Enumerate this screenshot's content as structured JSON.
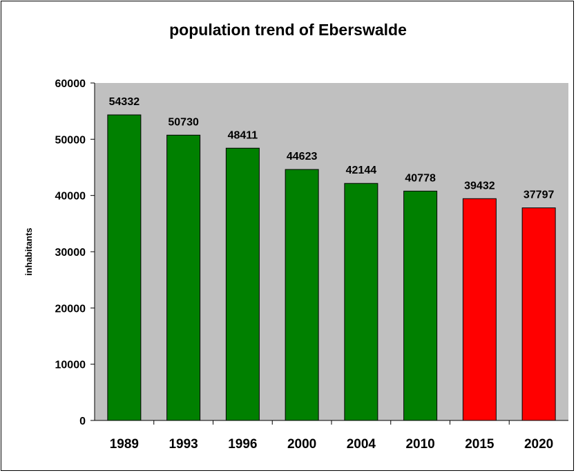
{
  "chart_data": {
    "type": "bar",
    "title": "population trend of Eberswalde",
    "xlabel": "",
    "ylabel": "inhabitants",
    "ylim": [
      0,
      60000
    ],
    "yticks": [
      0,
      10000,
      20000,
      30000,
      40000,
      50000,
      60000
    ],
    "categories": [
      "1989",
      "1993",
      "1996",
      "2000",
      "2004",
      "2010",
      "2015",
      "2020"
    ],
    "values": [
      54332,
      50730,
      48411,
      44623,
      42144,
      40778,
      39432,
      37797
    ],
    "bar_colors": [
      "#008000",
      "#008000",
      "#008000",
      "#008000",
      "#008000",
      "#008000",
      "#FF0000",
      "#FF0000"
    ],
    "plot_background": "#C0C0C0",
    "grid": false,
    "legend": "none"
  }
}
